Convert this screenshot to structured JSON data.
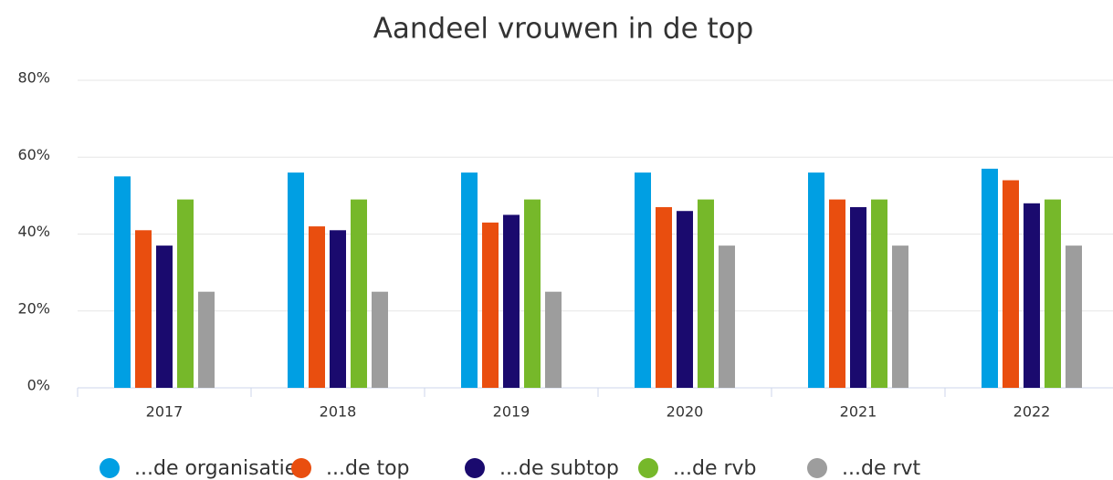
{
  "chart_data": {
    "type": "bar",
    "title": "Aandeel vrouwen in de top",
    "categories": [
      "2017",
      "2018",
      "2019",
      "2020",
      "2021",
      "2022"
    ],
    "series": [
      {
        "name": "...de organisatie",
        "color": "#009fe3",
        "values": [
          55,
          56,
          56,
          56,
          56,
          57
        ]
      },
      {
        "name": "...de top",
        "color": "#e94e0f",
        "values": [
          41,
          42,
          43,
          47,
          49,
          54
        ]
      },
      {
        "name": "...de subtop",
        "color": "#1a0a6e",
        "values": [
          37,
          41,
          45,
          46,
          47,
          48
        ]
      },
      {
        "name": "...de rvb",
        "color": "#76b82a",
        "values": [
          49,
          49,
          49,
          49,
          49,
          49
        ]
      },
      {
        "name": "...de rvt",
        "color": "#9d9d9d",
        "values": [
          25,
          25,
          25,
          37,
          37,
          37
        ]
      }
    ],
    "ylim": [
      0,
      80
    ],
    "yticks": [
      {
        "value": 0,
        "label": "0%"
      },
      {
        "value": 20,
        "label": "20%"
      },
      {
        "value": 40,
        "label": "40%"
      },
      {
        "value": 60,
        "label": "60%"
      },
      {
        "value": 80,
        "label": "80%"
      }
    ],
    "grid": true,
    "legend": "bottom"
  }
}
